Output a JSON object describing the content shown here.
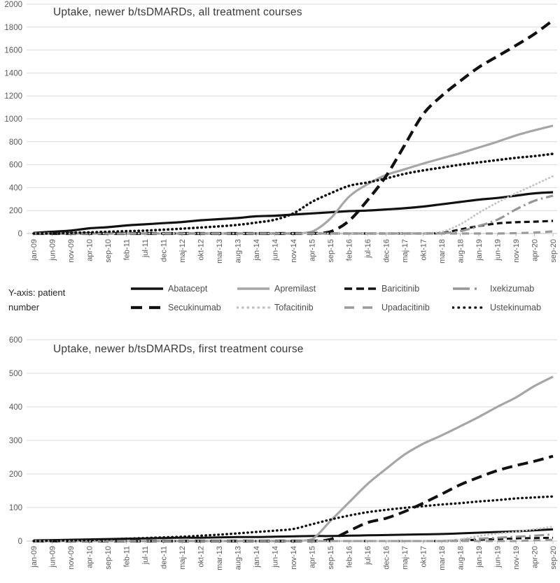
{
  "figure": {
    "background": "#ffffff",
    "y_axis_note": {
      "line1": "Y-axis: patient",
      "line2": "number"
    }
  },
  "colors": {
    "black_series": "#111111",
    "gray_series": "#a6a6a6",
    "mid_gray_series": "#969696",
    "light_gray_dots": "#c2c2c2",
    "gridline": "#d9d9d9",
    "axis_line": "#bfbfbf",
    "axis_text": "#595959",
    "title_text": "#383838"
  },
  "legend_position": "below first chart, two rows, four columns",
  "chart_data": [
    {
      "type": "line",
      "title": "Uptake, newer b/tsDMARDs, all treatment courses",
      "ylabel": "patient number",
      "ylim": [
        0,
        2000
      ],
      "ytick_step": 200,
      "grid": true,
      "x": [
        "jan-09",
        "jun-09",
        "nov-09",
        "apr-10",
        "sep-10",
        "feb-11",
        "jul-11",
        "dec-11",
        "maj-12",
        "okt-12",
        "mar-13",
        "aug-13",
        "jan-14",
        "jun-14",
        "nov-14",
        "apr-15",
        "sep-15",
        "feb-16",
        "jul-16",
        "dec-16",
        "maj-17",
        "okt-17",
        "mar-18",
        "aug-18",
        "jan-19",
        "jun-19",
        "nov-19",
        "apr-20",
        "sep-20"
      ],
      "series": [
        {
          "name": "Abatacept",
          "color": "#111111",
          "width": 3.2,
          "dash": "",
          "cap": "butt",
          "values": [
            5,
            15,
            25,
            45,
            55,
            70,
            80,
            90,
            100,
            115,
            125,
            135,
            150,
            155,
            165,
            175,
            185,
            195,
            200,
            210,
            220,
            235,
            255,
            275,
            295,
            310,
            330,
            350,
            360
          ]
        },
        {
          "name": "Apremilast",
          "color": "#a6a6a6",
          "width": 3.2,
          "dash": "",
          "cap": "butt",
          "values": [
            0,
            0,
            0,
            0,
            0,
            0,
            0,
            0,
            0,
            0,
            0,
            0,
            0,
            0,
            0,
            15,
            130,
            320,
            430,
            510,
            560,
            610,
            655,
            700,
            750,
            800,
            855,
            900,
            940
          ]
        },
        {
          "name": "Baricitinib",
          "color": "#111111",
          "width": 3.2,
          "dash": "8 5",
          "legend_dash": "11 6",
          "cap": "butt",
          "values": [
            0,
            0,
            0,
            0,
            0,
            0,
            0,
            0,
            0,
            0,
            0,
            0,
            0,
            0,
            0,
            0,
            0,
            0,
            0,
            0,
            0,
            0,
            5,
            35,
            65,
            88,
            98,
            103,
            110
          ]
        },
        {
          "name": "Ixekizumab",
          "color": "#969696",
          "width": 3.2,
          "dash": "14 5 2.5 5",
          "legend_dash": "24 7 3 20",
          "cap": "butt",
          "values": [
            0,
            0,
            0,
            0,
            0,
            0,
            0,
            0,
            0,
            0,
            0,
            0,
            0,
            0,
            0,
            0,
            0,
            0,
            0,
            0,
            0,
            0,
            3,
            20,
            65,
            120,
            210,
            285,
            330
          ]
        },
        {
          "name": "Secukinumab",
          "color": "#111111",
          "width": 4.2,
          "dash": "15 8",
          "legend_dash": "16 10",
          "cap": "butt",
          "values": [
            0,
            0,
            0,
            0,
            0,
            0,
            0,
            0,
            0,
            0,
            0,
            0,
            0,
            0,
            0,
            0,
            15,
            110,
            290,
            500,
            770,
            1040,
            1200,
            1330,
            1450,
            1545,
            1640,
            1740,
            1860
          ]
        },
        {
          "name": "Tofacitinib",
          "color": "#c2c2c2",
          "width": 2.8,
          "dash": "0.5 4.5",
          "legend_dash": "0.5 7",
          "cap": "round",
          "values": [
            0,
            0,
            0,
            0,
            0,
            0,
            0,
            0,
            0,
            0,
            0,
            0,
            0,
            0,
            0,
            0,
            0,
            0,
            0,
            0,
            0,
            0,
            15,
            80,
            180,
            270,
            350,
            425,
            500
          ]
        },
        {
          "name": "Upadacitinib",
          "color": "#9b9b9b",
          "width": 3.2,
          "dash": "10 7",
          "legend_dash": "14 12",
          "cap": "butt",
          "values": [
            0,
            0,
            0,
            0,
            0,
            0,
            0,
            0,
            0,
            0,
            0,
            0,
            0,
            0,
            0,
            0,
            0,
            0,
            0,
            0,
            0,
            0,
            0,
            0,
            0,
            0,
            3,
            8,
            18
          ]
        },
        {
          "name": "Ustekinumab",
          "color": "#111111",
          "width": 3.6,
          "dash": "0.5 5.5",
          "legend_dash": "0.5 7.5",
          "cap": "round",
          "values": [
            0,
            0,
            5,
            10,
            15,
            20,
            25,
            33,
            42,
            52,
            62,
            75,
            95,
            120,
            175,
            275,
            350,
            415,
            445,
            480,
            520,
            550,
            575,
            600,
            620,
            640,
            660,
            675,
            695
          ]
        }
      ]
    },
    {
      "type": "line",
      "title": "Uptake, newer b/tsDMARDs, first treatment course",
      "ylabel": "patient number",
      "ylim": [
        0,
        600
      ],
      "ytick_step": 100,
      "grid": true,
      "x": [
        "jan-09",
        "jun-09",
        "nov-09",
        "apr-10",
        "sep-10",
        "feb-11",
        "jul-11",
        "dec-11",
        "maj-12",
        "okt-12",
        "mar-13",
        "aug-13",
        "jan-14",
        "jun-14",
        "nov-14",
        "apr-15",
        "sep-15",
        "feb-16",
        "jul-16",
        "dec-16",
        "maj-17",
        "okt-17",
        "mar-18",
        "aug-18",
        "jan-19",
        "jun-19",
        "nov-19",
        "apr-20",
        "sep-20"
      ],
      "series": [
        {
          "name": "Abatacept",
          "color": "#111111",
          "width": 3.0,
          "dash": "",
          "cap": "butt",
          "values": [
            2,
            3,
            4,
            5,
            6,
            7,
            8,
            9,
            10,
            10,
            11,
            12,
            12,
            13,
            14,
            15,
            15,
            16,
            17,
            18,
            19,
            20,
            21,
            23,
            25,
            27,
            29,
            32,
            35
          ]
        },
        {
          "name": "Apremilast",
          "color": "#a6a6a6",
          "width": 3.2,
          "dash": "",
          "cap": "butt",
          "values": [
            0,
            0,
            0,
            0,
            0,
            0,
            0,
            0,
            0,
            0,
            0,
            0,
            0,
            0,
            0,
            5,
            60,
            115,
            170,
            215,
            258,
            290,
            315,
            342,
            370,
            400,
            428,
            462,
            490
          ]
        },
        {
          "name": "Baricitinib",
          "color": "#111111",
          "width": 3.0,
          "dash": "8 5",
          "cap": "butt",
          "values": [
            0,
            0,
            0,
            0,
            0,
            0,
            0,
            0,
            0,
            0,
            0,
            0,
            0,
            0,
            0,
            0,
            0,
            0,
            0,
            0,
            0,
            0,
            0,
            2,
            4,
            6,
            8,
            9,
            10
          ]
        },
        {
          "name": "Ixekizumab",
          "color": "#969696",
          "width": 3.0,
          "dash": "14 5 2.5 5",
          "cap": "butt",
          "values": [
            0,
            0,
            0,
            0,
            0,
            0,
            0,
            0,
            0,
            0,
            0,
            0,
            0,
            0,
            0,
            0,
            0,
            0,
            0,
            0,
            0,
            0,
            0,
            4,
            7,
            10,
            13,
            16,
            20
          ]
        },
        {
          "name": "Secukinumab",
          "color": "#111111",
          "width": 4.0,
          "dash": "15 8",
          "cap": "butt",
          "values": [
            0,
            0,
            0,
            0,
            0,
            0,
            0,
            0,
            0,
            0,
            0,
            0,
            0,
            0,
            0,
            0,
            5,
            30,
            55,
            68,
            88,
            113,
            140,
            168,
            190,
            210,
            225,
            238,
            253
          ]
        },
        {
          "name": "Tofacitinib",
          "color": "#c2c2c2",
          "width": 2.8,
          "dash": "0.5 4.5",
          "cap": "round",
          "values": [
            0,
            0,
            0,
            0,
            0,
            0,
            0,
            0,
            0,
            0,
            0,
            0,
            0,
            0,
            0,
            0,
            0,
            0,
            0,
            0,
            0,
            0,
            0,
            5,
            15,
            22,
            28,
            35,
            43
          ]
        },
        {
          "name": "Upadacitinib",
          "color": "#9b9b9b",
          "width": 3.0,
          "dash": "10 7",
          "cap": "butt",
          "values": [
            0,
            0,
            0,
            0,
            0,
            0,
            0,
            0,
            0,
            0,
            0,
            0,
            0,
            0,
            0,
            0,
            0,
            0,
            0,
            0,
            0,
            0,
            0,
            0,
            0,
            0,
            0,
            2,
            4
          ]
        },
        {
          "name": "Ustekinumab",
          "color": "#111111",
          "width": 3.4,
          "dash": "0.5 5.5",
          "cap": "round",
          "values": [
            0,
            1,
            2,
            3,
            5,
            7,
            9,
            11,
            13,
            16,
            19,
            23,
            27,
            31,
            36,
            50,
            64,
            76,
            86,
            93,
            99,
            104,
            109,
            113,
            118,
            122,
            127,
            130,
            133
          ]
        }
      ]
    }
  ]
}
